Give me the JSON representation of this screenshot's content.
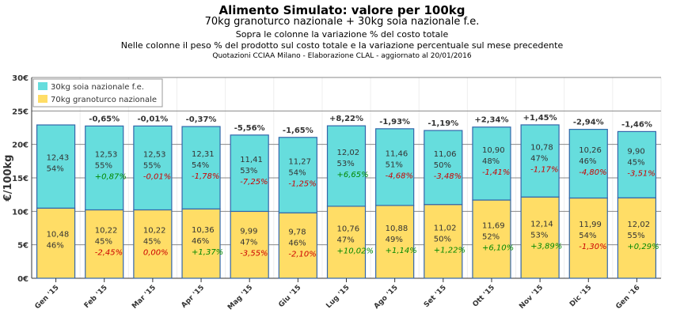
{
  "title": "Alimento Simulato: valore per 100kg",
  "subtitle": "70kg granoturco nazionale + 30kg soia nazionale f.e.",
  "note1": "Sopra le colonne la variazione % del costo totale",
  "note2": "Nelle colonne il peso % del prodotto sul costo totale e la variazione percentuale sul mese precedente",
  "source": "Quotazioni CCIAA Milano - Elaborazione CLAL - aggiornato al 20/01/2016",
  "chart_data": {
    "type": "bar",
    "stacked": true,
    "ylabel": "€/100kg",
    "ylim": [
      0,
      30
    ],
    "yticks": [
      "0€",
      "5€",
      "10€",
      "15€",
      "20€",
      "25€",
      "30€"
    ],
    "legend_position": "top-left",
    "categories": [
      "Gen '15",
      "Feb '15",
      "Mar '15",
      "Apr '15",
      "Mag '15",
      "Giu '15",
      "Lug '15",
      "Ago '15",
      "Set '15",
      "Ott '15",
      "Nov '15",
      "Dic '15",
      "Gen '16"
    ],
    "total_change": [
      "",
      "-0,65%",
      "-0,01%",
      "-0,37%",
      "-5,56%",
      "-1,65%",
      "+8,22%",
      "-1,93%",
      "-1,19%",
      "+2,34%",
      "+1,45%",
      "-2,94%",
      "-1,46%"
    ],
    "series": [
      {
        "name": "70kg granoturco nazionale",
        "color": "#FFDD66",
        "values": [
          10.48,
          10.22,
          10.22,
          10.36,
          9.99,
          9.78,
          10.76,
          10.88,
          11.02,
          11.69,
          12.14,
          11.99,
          12.02
        ],
        "labels": [
          "10,48",
          "10,22",
          "10,22",
          "10,36",
          "9,99",
          "9,78",
          "10,76",
          "10,88",
          "11,02",
          "11,69",
          "12,14",
          "11,99",
          "12,02"
        ],
        "share": [
          "46%",
          "45%",
          "45%",
          "46%",
          "47%",
          "46%",
          "47%",
          "49%",
          "50%",
          "52%",
          "53%",
          "54%",
          "55%"
        ],
        "change": [
          "",
          "-2,45%",
          "0,00%",
          "+1,37%",
          "-3,55%",
          "-2,10%",
          "+10,02%",
          "+1,14%",
          "+1,22%",
          "+6,10%",
          "+3,89%",
          "-1,30%",
          "+0,29%"
        ]
      },
      {
        "name": "30kg soia nazionale f.e.",
        "color": "#66DDDD",
        "values": [
          12.43,
          12.53,
          12.53,
          12.31,
          11.41,
          11.27,
          12.02,
          11.46,
          11.06,
          10.9,
          10.78,
          10.26,
          9.9
        ],
        "labels": [
          "12,43",
          "12,53",
          "12,53",
          "12,31",
          "11,41",
          "11,27",
          "12,02",
          "11,46",
          "11,06",
          "10,90",
          "10,78",
          "10,26",
          "9,90"
        ],
        "share": [
          "54%",
          "55%",
          "55%",
          "54%",
          "53%",
          "54%",
          "53%",
          "51%",
          "50%",
          "48%",
          "47%",
          "46%",
          "45%"
        ],
        "change": [
          "",
          "+0,87%",
          "-0,01%",
          "-1,78%",
          "-7,25%",
          "-1,25%",
          "+6,65%",
          "-4,68%",
          "-3,48%",
          "-1,41%",
          "-1,17%",
          "-4,80%",
          "-3,51%"
        ]
      }
    ],
    "colors": {
      "positive": "#008800",
      "negative": "#CC0000",
      "border": "#3366AA"
    }
  }
}
